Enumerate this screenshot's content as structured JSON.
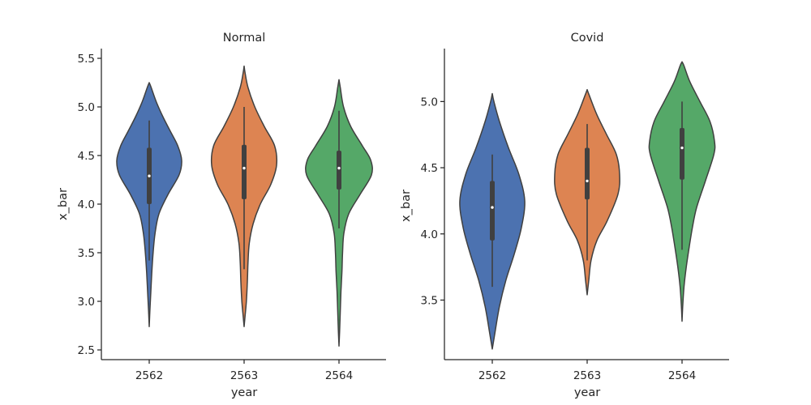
{
  "chart_data": [
    {
      "type": "violin",
      "title": "Normal",
      "xlabel": "year",
      "ylabel": "x_bar",
      "categories": [
        "2562",
        "2563",
        "2564"
      ],
      "ylim": [
        2.4,
        5.6
      ],
      "yticks": [
        "2.5",
        "3.0",
        "3.5",
        "4.0",
        "4.5",
        "5.0",
        "5.5"
      ],
      "colors": [
        "#4c72b0",
        "#dd8452",
        "#55a868"
      ],
      "violins": [
        {
          "category": "2562",
          "min": 2.74,
          "max": 5.25,
          "box": {
            "q1": 4.0,
            "median": 4.29,
            "q3": 4.58,
            "whisker_low": 3.42,
            "whisker_high": 4.86
          },
          "profile": [
            [
              2.74,
              0.0
            ],
            [
              2.9,
              0.02
            ],
            [
              3.1,
              0.05
            ],
            [
              3.3,
              0.08
            ],
            [
              3.5,
              0.12
            ],
            [
              3.7,
              0.18
            ],
            [
              3.9,
              0.3
            ],
            [
              4.1,
              0.58
            ],
            [
              4.3,
              0.92
            ],
            [
              4.45,
              1.0
            ],
            [
              4.6,
              0.88
            ],
            [
              4.75,
              0.65
            ],
            [
              4.9,
              0.42
            ],
            [
              5.05,
              0.22
            ],
            [
              5.2,
              0.06
            ],
            [
              5.25,
              0.0
            ]
          ]
        },
        {
          "category": "2563",
          "min": 2.74,
          "max": 5.42,
          "box": {
            "q1": 4.05,
            "median": 4.37,
            "q3": 4.61,
            "whisker_low": 3.33,
            "whisker_high": 5.0
          },
          "profile": [
            [
              2.74,
              0.0
            ],
            [
              2.85,
              0.03
            ],
            [
              3.0,
              0.07
            ],
            [
              3.2,
              0.1
            ],
            [
              3.4,
              0.12
            ],
            [
              3.6,
              0.16
            ],
            [
              3.8,
              0.28
            ],
            [
              4.0,
              0.5
            ],
            [
              4.2,
              0.82
            ],
            [
              4.4,
              1.0
            ],
            [
              4.6,
              0.94
            ],
            [
              4.8,
              0.62
            ],
            [
              5.0,
              0.33
            ],
            [
              5.2,
              0.12
            ],
            [
              5.35,
              0.03
            ],
            [
              5.42,
              0.0
            ]
          ]
        },
        {
          "category": "2564",
          "min": 2.54,
          "max": 5.28,
          "box": {
            "q1": 4.15,
            "median": 4.37,
            "q3": 4.55,
            "whisker_low": 3.75,
            "whisker_high": 4.96
          },
          "profile": [
            [
              2.54,
              0.0
            ],
            [
              2.7,
              0.02
            ],
            [
              2.9,
              0.04
            ],
            [
              3.1,
              0.06
            ],
            [
              3.3,
              0.09
            ],
            [
              3.5,
              0.11
            ],
            [
              3.7,
              0.15
            ],
            [
              3.9,
              0.3
            ],
            [
              4.1,
              0.65
            ],
            [
              4.3,
              1.0
            ],
            [
              4.45,
              0.98
            ],
            [
              4.6,
              0.72
            ],
            [
              4.8,
              0.36
            ],
            [
              5.0,
              0.14
            ],
            [
              5.2,
              0.04
            ],
            [
              5.28,
              0.0
            ]
          ]
        }
      ]
    },
    {
      "type": "violin",
      "title": "Covid",
      "xlabel": "year",
      "ylabel": "x_bar",
      "categories": [
        "2562",
        "2563",
        "2564"
      ],
      "ylim": [
        3.05,
        5.4
      ],
      "yticks": [
        "3.5",
        "4.0",
        "4.5",
        "5.0"
      ],
      "colors": [
        "#4c72b0",
        "#dd8452",
        "#55a868"
      ],
      "violins": [
        {
          "category": "2562",
          "min": 3.13,
          "max": 5.06,
          "box": {
            "q1": 3.95,
            "median": 4.2,
            "q3": 4.4,
            "whisker_low": 3.6,
            "whisker_high": 4.6
          },
          "profile": [
            [
              3.13,
              0.0
            ],
            [
              3.25,
              0.08
            ],
            [
              3.45,
              0.22
            ],
            [
              3.65,
              0.42
            ],
            [
              3.85,
              0.68
            ],
            [
              4.05,
              0.9
            ],
            [
              4.25,
              1.0
            ],
            [
              4.45,
              0.82
            ],
            [
              4.65,
              0.5
            ],
            [
              4.85,
              0.22
            ],
            [
              5.0,
              0.05
            ],
            [
              5.06,
              0.0
            ]
          ]
        },
        {
          "category": "2563",
          "min": 3.54,
          "max": 5.09,
          "box": {
            "q1": 4.26,
            "median": 4.4,
            "q3": 4.65,
            "whisker_low": 3.8,
            "whisker_high": 4.83
          },
          "profile": [
            [
              3.54,
              0.0
            ],
            [
              3.65,
              0.05
            ],
            [
              3.8,
              0.12
            ],
            [
              3.95,
              0.3
            ],
            [
              4.1,
              0.62
            ],
            [
              4.3,
              0.95
            ],
            [
              4.45,
              1.0
            ],
            [
              4.6,
              0.9
            ],
            [
              4.75,
              0.6
            ],
            [
              4.9,
              0.3
            ],
            [
              5.05,
              0.06
            ],
            [
              5.09,
              0.0
            ]
          ]
        },
        {
          "category": "2564",
          "min": 3.34,
          "max": 5.3,
          "box": {
            "q1": 4.41,
            "median": 4.65,
            "q3": 4.8,
            "whisker_low": 3.88,
            "whisker_high": 5.0
          },
          "profile": [
            [
              3.34,
              0.0
            ],
            [
              3.45,
              0.02
            ],
            [
              3.6,
              0.06
            ],
            [
              3.75,
              0.13
            ],
            [
              3.9,
              0.22
            ],
            [
              4.05,
              0.32
            ],
            [
              4.2,
              0.45
            ],
            [
              4.4,
              0.72
            ],
            [
              4.6,
              0.98
            ],
            [
              4.7,
              1.0
            ],
            [
              4.85,
              0.86
            ],
            [
              5.0,
              0.55
            ],
            [
              5.15,
              0.24
            ],
            [
              5.27,
              0.06
            ],
            [
              5.3,
              0.0
            ]
          ]
        }
      ]
    }
  ]
}
